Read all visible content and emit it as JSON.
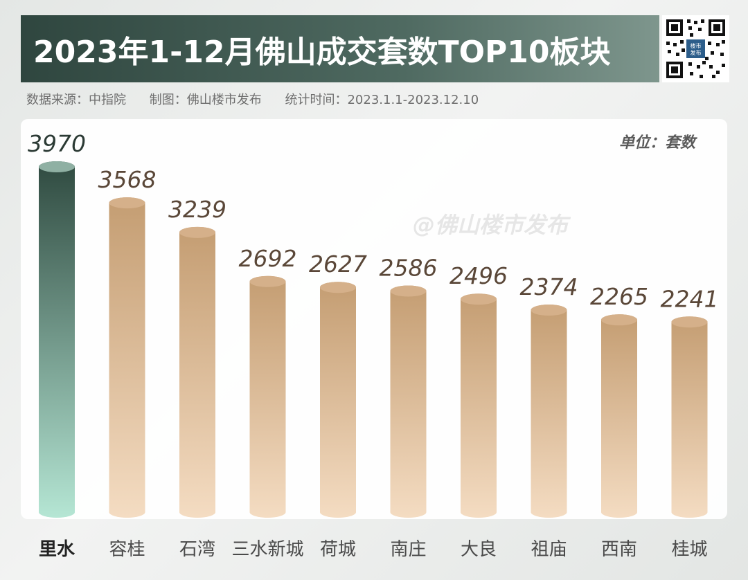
{
  "header": {
    "title": "2023年1-12月佛山成交套数TOP10板块",
    "source": "数据来源：中指院",
    "made_by": "制图：佛山楼市发布",
    "period": "统计时间：2023.1.1-2023.12.10"
  },
  "qr": {
    "label": "楼市发布",
    "icon": "qr-code-icon"
  },
  "watermark": "@佛山楼市发布",
  "colors": {
    "title_bar": "#3a534a",
    "highlight_bar_top": "#2f4a40",
    "highlight_bar_bottom": "#b5e6d4",
    "bar_top": "#c49d72",
    "bar_bottom": "#f4dcc2",
    "value_label": "#5a4738",
    "highlight_value_label": "#2b3a34"
  },
  "chart_data": {
    "type": "bar",
    "unit_label": "单位：套数",
    "categories": [
      "里水",
      "容桂",
      "石湾",
      "三水新城",
      "荷城",
      "南庄",
      "大良",
      "祖庙",
      "西南",
      "桂城"
    ],
    "values": [
      3970,
      3568,
      3239,
      2692,
      2627,
      2586,
      2496,
      2374,
      2265,
      2241
    ],
    "highlight_index": 0,
    "title": "2023年1-12月佛山成交套数TOP10板块",
    "xlabel": "",
    "ylabel": "",
    "grid": false,
    "legend": "none"
  }
}
